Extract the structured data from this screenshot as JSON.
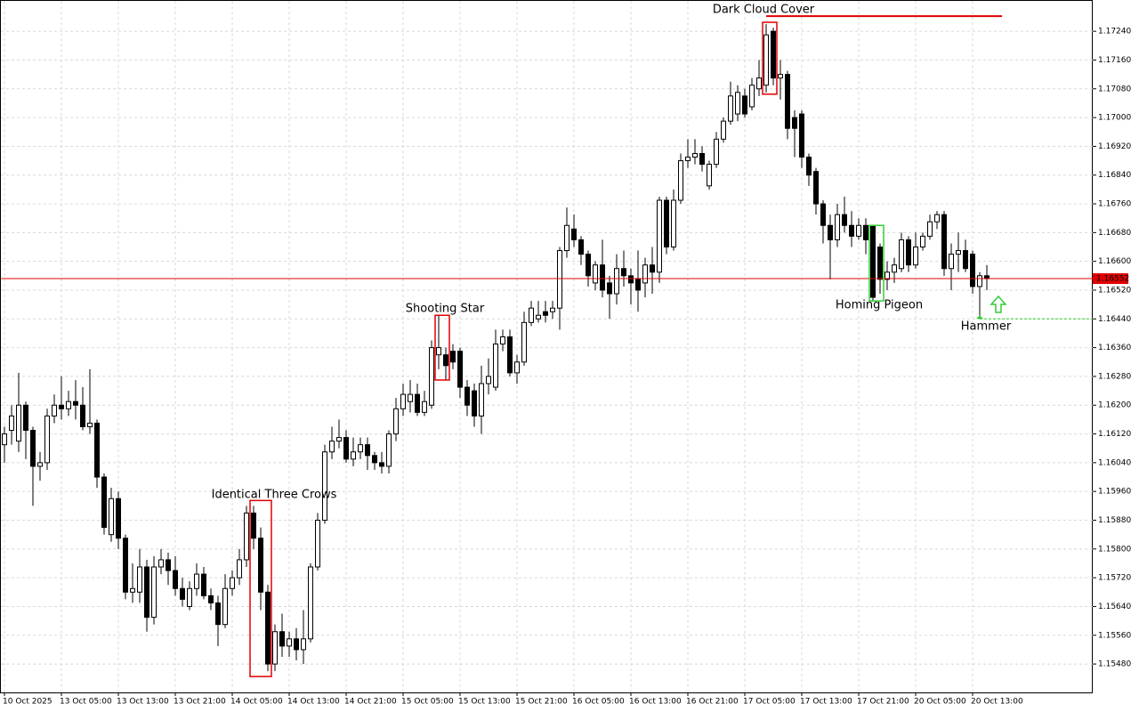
{
  "chart_data": {
    "type": "candlestick",
    "categories": [
      "10 Oct 2025",
      null,
      null,
      null,
      null,
      null,
      null,
      null,
      "13 Oct 05:00",
      null,
      null,
      null,
      null,
      null,
      null,
      null,
      "13 Oct 13:00",
      null,
      null,
      null,
      null,
      null,
      null,
      null,
      "13 Oct 21:00",
      null,
      null,
      null,
      null,
      null,
      null,
      null,
      "14 Oct 05:00",
      null,
      null,
      null,
      null,
      null,
      null,
      null,
      "14 Oct 13:00",
      null,
      null,
      null,
      null,
      null,
      null,
      null,
      "14 Oct 21:00",
      null,
      null,
      null,
      null,
      null,
      null,
      null,
      "15 Oct 05:00",
      null,
      null,
      null,
      null,
      null,
      null,
      null,
      "15 Oct 13:00",
      null,
      null,
      null,
      null,
      null,
      null,
      null,
      "15 Oct 21:00",
      null,
      null,
      null,
      null,
      null,
      null,
      null,
      "16 Oct 05:00",
      null,
      null,
      null,
      null,
      null,
      null,
      null,
      "16 Oct 13:00",
      null,
      null,
      null,
      null,
      null,
      null,
      null,
      "16 Oct 21:00",
      null,
      null,
      null,
      null,
      null,
      null,
      null,
      "17 Oct 05:00",
      null,
      null,
      null,
      null,
      null,
      null,
      null,
      "17 Oct 13:00",
      null,
      null,
      null,
      null,
      null,
      null,
      null,
      "17 Oct 21:00",
      null,
      null,
      null,
      null,
      null,
      null,
      null,
      "20 Oct 05:00",
      null,
      null,
      null,
      null,
      null,
      null,
      null,
      "20 Oct 13:00",
      null,
      null
    ],
    "open": [
      1.1609,
      1.1613,
      1.161,
      1.162,
      1.1613,
      1.1603,
      1.1604,
      1.1617,
      1.162,
      1.1619,
      1.1621,
      1.162,
      1.1614,
      1.1615,
      1.16,
      1.1584,
      1.1594,
      1.1583,
      1.1568,
      1.1568,
      1.1575,
      1.1561,
      1.1575,
      1.1577,
      1.1574,
      1.1569,
      1.1564,
      1.1569,
      1.1573,
      1.1567,
      1.1565,
      1.1559,
      1.1569,
      1.1572,
      1.1577,
      1.159,
      1.1583,
      1.1568,
      1.1548,
      1.1557,
      1.1553,
      1.1555,
      1.1552,
      1.1555,
      1.1575,
      1.1588,
      1.1607,
      1.161,
      1.1611,
      1.1605,
      1.1607,
      1.1609,
      1.1606,
      1.1604,
      1.1603,
      1.1612,
      1.1619,
      1.1621,
      1.1623,
      1.1618,
      1.162,
      1.1634,
      1.1634,
      1.1635,
      1.1635,
      1.1625,
      1.1624,
      1.1617,
      1.1626,
      1.1625,
      1.1637,
      1.1639,
      1.1629,
      1.1632,
      1.1643,
      1.1644,
      1.1646,
      1.1646,
      1.1647,
      1.1663,
      1.1669,
      1.1666,
      1.1662,
      1.1654,
      1.1659,
      1.1654,
      1.1651,
      1.1658,
      1.1656,
      1.1655,
      1.1654,
      1.1659,
      1.1657,
      1.1677,
      1.1664,
      1.1677,
      1.1688,
      1.1689,
      1.169,
      1.1681,
      1.1687,
      1.1694,
      1.1699,
      1.1701,
      1.1706,
      1.1703,
      1.1708,
      1.1709,
      1.1724,
      1.1711,
      1.1712,
      1.17,
      1.1701,
      1.1689,
      1.1685,
      1.1676,
      1.167,
      1.1666,
      1.1673,
      1.167,
      1.1667,
      1.167,
      1.167,
      1.1664,
      1.1655,
      1.1657,
      1.1658,
      1.1666,
      1.1659,
      1.1664,
      1.1667,
      1.1671,
      1.1673,
      1.1658,
      1.1662,
      1.1663,
      1.1662,
      1.1653,
      1.1656
    ],
    "high": [
      1.1614,
      1.162,
      1.1629,
      1.1621,
      1.1614,
      1.1607,
      1.1619,
      1.1623,
      1.1628,
      1.1624,
      1.1627,
      1.1625,
      1.163,
      1.1616,
      1.1601,
      1.1597,
      1.1596,
      1.1584,
      1.1576,
      1.158,
      1.1577,
      1.1578,
      1.158,
      1.1579,
      1.1578,
      1.1572,
      1.1571,
      1.1576,
      1.1575,
      1.1569,
      1.1567,
      1.1573,
      1.1574,
      1.158,
      1.1592,
      1.1592,
      1.1586,
      1.157,
      1.1559,
      1.1562,
      1.1557,
      1.1558,
      1.1563,
      1.1576,
      1.159,
      1.1609,
      1.1614,
      1.1616,
      1.1613,
      1.1611,
      1.1611,
      1.1611,
      1.1607,
      1.1607,
      1.1613,
      1.1622,
      1.1626,
      1.1627,
      1.1626,
      1.1624,
      1.1638,
      1.1645,
      1.1636,
      1.1637,
      1.1636,
      1.1627,
      1.1626,
      1.1631,
      1.1633,
      1.1641,
      1.1641,
      1.1641,
      1.1634,
      1.1646,
      1.1649,
      1.1649,
      1.1649,
      1.1649,
      1.1664,
      1.1675,
      1.1673,
      1.1667,
      1.1663,
      1.166,
      1.1666,
      1.1656,
      1.1662,
      1.1663,
      1.1658,
      1.1663,
      1.1661,
      1.1664,
      1.1678,
      1.1678,
      1.168,
      1.169,
      1.1694,
      1.1694,
      1.1692,
      1.1688,
      1.1696,
      1.17,
      1.171,
      1.1709,
      1.1708,
      1.1711,
      1.1716,
      1.1726,
      1.1725,
      1.1716,
      1.1713,
      1.1702,
      1.1702,
      1.169,
      1.1686,
      1.1677,
      1.1673,
      1.1676,
      1.1678,
      1.1674,
      1.1672,
      1.1672,
      1.167,
      1.1665,
      1.166,
      1.1661,
      1.1668,
      1.1667,
      1.1668,
      1.1668,
      1.1673,
      1.1674,
      1.1674,
      1.1665,
      1.1668,
      1.1666,
      1.1663,
      1.1657,
      1.1659
    ],
    "low": [
      1.1604,
      1.1609,
      1.1607,
      1.1605,
      1.1592,
      1.1599,
      1.1602,
      1.1615,
      1.1616,
      1.1617,
      1.1616,
      1.1613,
      1.1612,
      1.1597,
      1.1584,
      1.1582,
      1.158,
      1.1566,
      1.1565,
      1.1565,
      1.1557,
      1.1559,
      1.1573,
      1.157,
      1.1567,
      1.1564,
      1.1563,
      1.1567,
      1.1566,
      1.1563,
      1.1553,
      1.1558,
      1.1567,
      1.157,
      1.1575,
      1.158,
      1.1563,
      1.1546,
      1.1546,
      1.155,
      1.155,
      1.1549,
      1.1548,
      1.1554,
      1.1574,
      1.1587,
      1.1605,
      1.1608,
      1.1604,
      1.1603,
      1.1605,
      1.1602,
      1.1602,
      1.1601,
      1.1601,
      1.161,
      1.1617,
      1.1618,
      1.1617,
      1.1617,
      1.1619,
      1.163,
      1.1627,
      1.163,
      1.1622,
      1.1617,
      1.1614,
      1.1612,
      1.1623,
      1.1624,
      1.1635,
      1.1628,
      1.1626,
      1.1631,
      1.1642,
      1.1643,
      1.1643,
      1.1644,
      1.1641,
      1.1661,
      1.1664,
      1.1659,
      1.1653,
      1.1652,
      1.165,
      1.1644,
      1.1648,
      1.1653,
      1.1648,
      1.1646,
      1.165,
      1.1651,
      1.1654,
      1.1662,
      1.1663,
      1.1676,
      1.1686,
      1.1687,
      1.1685,
      1.168,
      1.1686,
      1.1693,
      1.1698,
      1.1699,
      1.17,
      1.1702,
      1.1706,
      1.1707,
      1.1709,
      1.1705,
      1.1694,
      1.1689,
      1.1686,
      1.1681,
      1.1673,
      1.1665,
      1.1655,
      1.1664,
      1.1668,
      1.1664,
      1.1666,
      1.1662,
      1.1649,
      1.1651,
      1.1652,
      1.1654,
      1.1657,
      1.1657,
      1.1658,
      1.1663,
      1.1666,
      1.1669,
      1.1656,
      1.1652,
      1.1657,
      1.1657,
      1.1651,
      1.1644,
      1.1652
    ],
    "close": [
      1.1612,
      1.1617,
      1.162,
      1.1613,
      1.1603,
      1.1604,
      1.1617,
      1.162,
      1.1619,
      1.1621,
      1.162,
      1.1614,
      1.1615,
      1.16,
      1.1586,
      1.1594,
      1.1583,
      1.1568,
      1.1569,
      1.1575,
      1.1561,
      1.1575,
      1.1577,
      1.1574,
      1.1569,
      1.1566,
      1.1569,
      1.1573,
      1.1567,
      1.1565,
      1.1559,
      1.1569,
      1.1572,
      1.1577,
      1.159,
      1.1583,
      1.1568,
      1.1548,
      1.1557,
      1.1553,
      1.1555,
      1.1552,
      1.1555,
      1.1575,
      1.1588,
      1.1607,
      1.161,
      1.1611,
      1.1605,
      1.1607,
      1.1609,
      1.1606,
      1.1604,
      1.1603,
      1.1612,
      1.1619,
      1.1623,
      1.1623,
      1.1618,
      1.1621,
      1.1636,
      1.1636,
      1.1631,
      1.1632,
      1.1625,
      1.162,
      1.1617,
      1.1626,
      1.1628,
      1.1637,
      1.1639,
      1.1629,
      1.1632,
      1.1643,
      1.1647,
      1.1645,
      1.1645,
      1.1647,
      1.1663,
      1.167,
      1.1666,
      1.1662,
      1.1656,
      1.1659,
      1.1652,
      1.1651,
      1.1658,
      1.1656,
      1.1654,
      1.1652,
      1.1659,
      1.1657,
      1.1677,
      1.1664,
      1.1677,
      1.1688,
      1.1689,
      1.169,
      1.1687,
      1.1687,
      1.1694,
      1.1699,
      1.1706,
      1.1707,
      1.1701,
      1.1709,
      1.1711,
      1.1723,
      1.1711,
      1.1712,
      1.1697,
      1.1697,
      1.1689,
      1.1684,
      1.1676,
      1.167,
      1.1666,
      1.1673,
      1.167,
      1.1667,
      1.167,
      1.1666,
      1.165,
      1.1655,
      1.1657,
      1.1659,
      1.1666,
      1.1659,
      1.1664,
      1.1667,
      1.1671,
      1.1673,
      1.1658,
      1.1662,
      1.1663,
      1.1658,
      1.1653,
      1.1656,
      1.16552
    ],
    "up_color": "#ffffff",
    "down_color": "#000000",
    "outline_color": "#000000",
    "ylim": [
      1.15401,
      1.17327
    ],
    "yticks": [
      {
        "value": 1.1548,
        "label": "1.15480"
      },
      {
        "value": 1.1556,
        "label": "1.15560"
      },
      {
        "value": 1.1564,
        "label": "1.15640"
      },
      {
        "value": 1.1572,
        "label": "1.15720"
      },
      {
        "value": 1.158,
        "label": "1.15800"
      },
      {
        "value": 1.1588,
        "label": "1.15880"
      },
      {
        "value": 1.1596,
        "label": "1.15960"
      },
      {
        "value": 1.1604,
        "label": "1.16040"
      },
      {
        "value": 1.1612,
        "label": "1.16120"
      },
      {
        "value": 1.162,
        "label": "1.16200"
      },
      {
        "value": 1.1628,
        "label": "1.16280"
      },
      {
        "value": 1.1636,
        "label": "1.16360"
      },
      {
        "value": 1.1644,
        "label": "1.16440"
      },
      {
        "value": 1.1652,
        "label": "1.16520"
      },
      {
        "value": 1.166,
        "label": "1.16600"
      },
      {
        "value": 1.1668,
        "label": "1.16680"
      },
      {
        "value": 1.1676,
        "label": "1.16760"
      },
      {
        "value": 1.1684,
        "label": "1.16840"
      },
      {
        "value": 1.1692,
        "label": "1.16920"
      },
      {
        "value": 1.17,
        "label": "1.17000"
      },
      {
        "value": 1.1708,
        "label": "1.17080"
      },
      {
        "value": 1.1716,
        "label": "1.17160"
      },
      {
        "value": 1.1724,
        "label": "1.17240"
      }
    ],
    "grid": true,
    "current_price": 1.16552,
    "current_price_color": "#e00000",
    "annotations": [
      {
        "text": "Dark Cloud Cover",
        "color": "#e00000",
        "level": 1.17282
      },
      {
        "text": "Shooting Star",
        "color": "#e00000"
      },
      {
        "text": "Identical Three Crows",
        "color": "#e00000"
      },
      {
        "text": "Homing Pigeon",
        "color": "#33cc33"
      },
      {
        "text": "Hammer",
        "color": "#33cc33",
        "level": 1.1644
      }
    ]
  }
}
